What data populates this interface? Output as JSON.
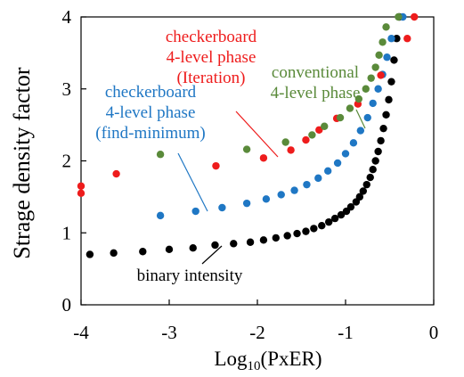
{
  "chart_data": {
    "type": "scatter",
    "title": "",
    "xlabel": "Log",
    "xlabel_sub": "10",
    "xlabel_tail": "(PxER)",
    "ylabel": "Strage density factor",
    "xlim": [
      -4,
      0
    ],
    "ylim": [
      0,
      4
    ],
    "x_ticks": [
      -4,
      -3,
      -2,
      -1,
      0
    ],
    "y_ticks": [
      0,
      1,
      2,
      3,
      4
    ],
    "x_tick_labels": [
      "-4",
      "-3",
      "-2",
      "-1",
      "0"
    ],
    "y_tick_labels": [
      "0",
      "1",
      "2",
      "3",
      "4"
    ],
    "grid": false,
    "series": [
      {
        "key": "binary",
        "color": "#000000",
        "label_lines": [
          "binary intensity"
        ],
        "points": [
          [
            -3.9,
            0.7
          ],
          [
            -3.63,
            0.72
          ],
          [
            -3.3,
            0.74
          ],
          [
            -3.0,
            0.77
          ],
          [
            -2.73,
            0.79
          ],
          [
            -2.48,
            0.83
          ],
          [
            -2.27,
            0.85
          ],
          [
            -2.08,
            0.87
          ],
          [
            -1.93,
            0.9
          ],
          [
            -1.79,
            0.93
          ],
          [
            -1.66,
            0.96
          ],
          [
            -1.55,
            0.99
          ],
          [
            -1.45,
            1.02
          ],
          [
            -1.36,
            1.06
          ],
          [
            -1.27,
            1.1
          ],
          [
            -1.19,
            1.15
          ],
          [
            -1.12,
            1.2
          ],
          [
            -1.05,
            1.25
          ],
          [
            -0.99,
            1.3
          ],
          [
            -0.94,
            1.36
          ],
          [
            -0.88,
            1.43
          ],
          [
            -0.84,
            1.5
          ],
          [
            -0.8,
            1.58
          ],
          [
            -0.76,
            1.67
          ],
          [
            -0.72,
            1.77
          ],
          [
            -0.69,
            1.88
          ],
          [
            -0.66,
            2.0
          ],
          [
            -0.63,
            2.13
          ],
          [
            -0.6,
            2.28
          ],
          [
            -0.57,
            2.45
          ],
          [
            -0.54,
            2.64
          ],
          [
            -0.51,
            2.85
          ],
          [
            -0.48,
            3.1
          ],
          [
            -0.45,
            3.4
          ],
          [
            -0.42,
            3.7
          ],
          [
            -0.39,
            4.0
          ]
        ]
      },
      {
        "key": "findmin",
        "color": "#1f77c4",
        "label_lines": [
          "checkerboard",
          "4-level phase",
          "(find-minimum)"
        ],
        "points": [
          [
            -3.1,
            1.24
          ],
          [
            -2.7,
            1.3
          ],
          [
            -2.4,
            1.35
          ],
          [
            -2.12,
            1.41
          ],
          [
            -1.9,
            1.47
          ],
          [
            -1.73,
            1.53
          ],
          [
            -1.58,
            1.59
          ],
          [
            -1.44,
            1.67
          ],
          [
            -1.31,
            1.76
          ],
          [
            -1.2,
            1.86
          ],
          [
            -1.09,
            1.97
          ],
          [
            -1.0,
            2.1
          ],
          [
            -0.91,
            2.25
          ],
          [
            -0.83,
            2.42
          ],
          [
            -0.75,
            2.6
          ],
          [
            -0.69,
            2.8
          ],
          [
            -0.63,
            3.0
          ],
          [
            -0.58,
            3.2
          ],
          [
            -0.53,
            3.44
          ],
          [
            -0.48,
            3.7
          ],
          [
            -0.35,
            4.0
          ]
        ]
      },
      {
        "key": "iteration",
        "color": "#ee1c1c",
        "label_lines": [
          "checkerboard",
          "4-level phase",
          "(Iteration)"
        ],
        "points": [
          [
            -4.0,
            1.65
          ],
          [
            -4.0,
            1.55
          ],
          [
            -3.6,
            1.82
          ],
          [
            -2.47,
            1.93
          ],
          [
            -1.93,
            2.04
          ],
          [
            -1.62,
            2.15
          ],
          [
            -1.45,
            2.29
          ],
          [
            -1.3,
            2.43
          ],
          [
            -1.1,
            2.59
          ],
          [
            -0.86,
            2.79
          ],
          [
            -0.6,
            3.19
          ],
          [
            -0.3,
            3.7
          ],
          [
            -0.22,
            4.0
          ]
        ]
      },
      {
        "key": "conventional",
        "color": "#5a8a3a",
        "label_lines": [
          "conventional",
          "4-level phase"
        ],
        "points": [
          [
            -3.1,
            2.09
          ],
          [
            -2.12,
            2.16
          ],
          [
            -1.68,
            2.26
          ],
          [
            -1.38,
            2.36
          ],
          [
            -1.24,
            2.48
          ],
          [
            -1.06,
            2.6
          ],
          [
            -0.95,
            2.73
          ],
          [
            -0.85,
            2.86
          ],
          [
            -0.77,
            3.0
          ],
          [
            -0.71,
            3.15
          ],
          [
            -0.66,
            3.3
          ],
          [
            -0.62,
            3.47
          ],
          [
            -0.58,
            3.65
          ],
          [
            -0.54,
            3.86
          ],
          [
            -0.4,
            4.0
          ]
        ]
      }
    ]
  }
}
